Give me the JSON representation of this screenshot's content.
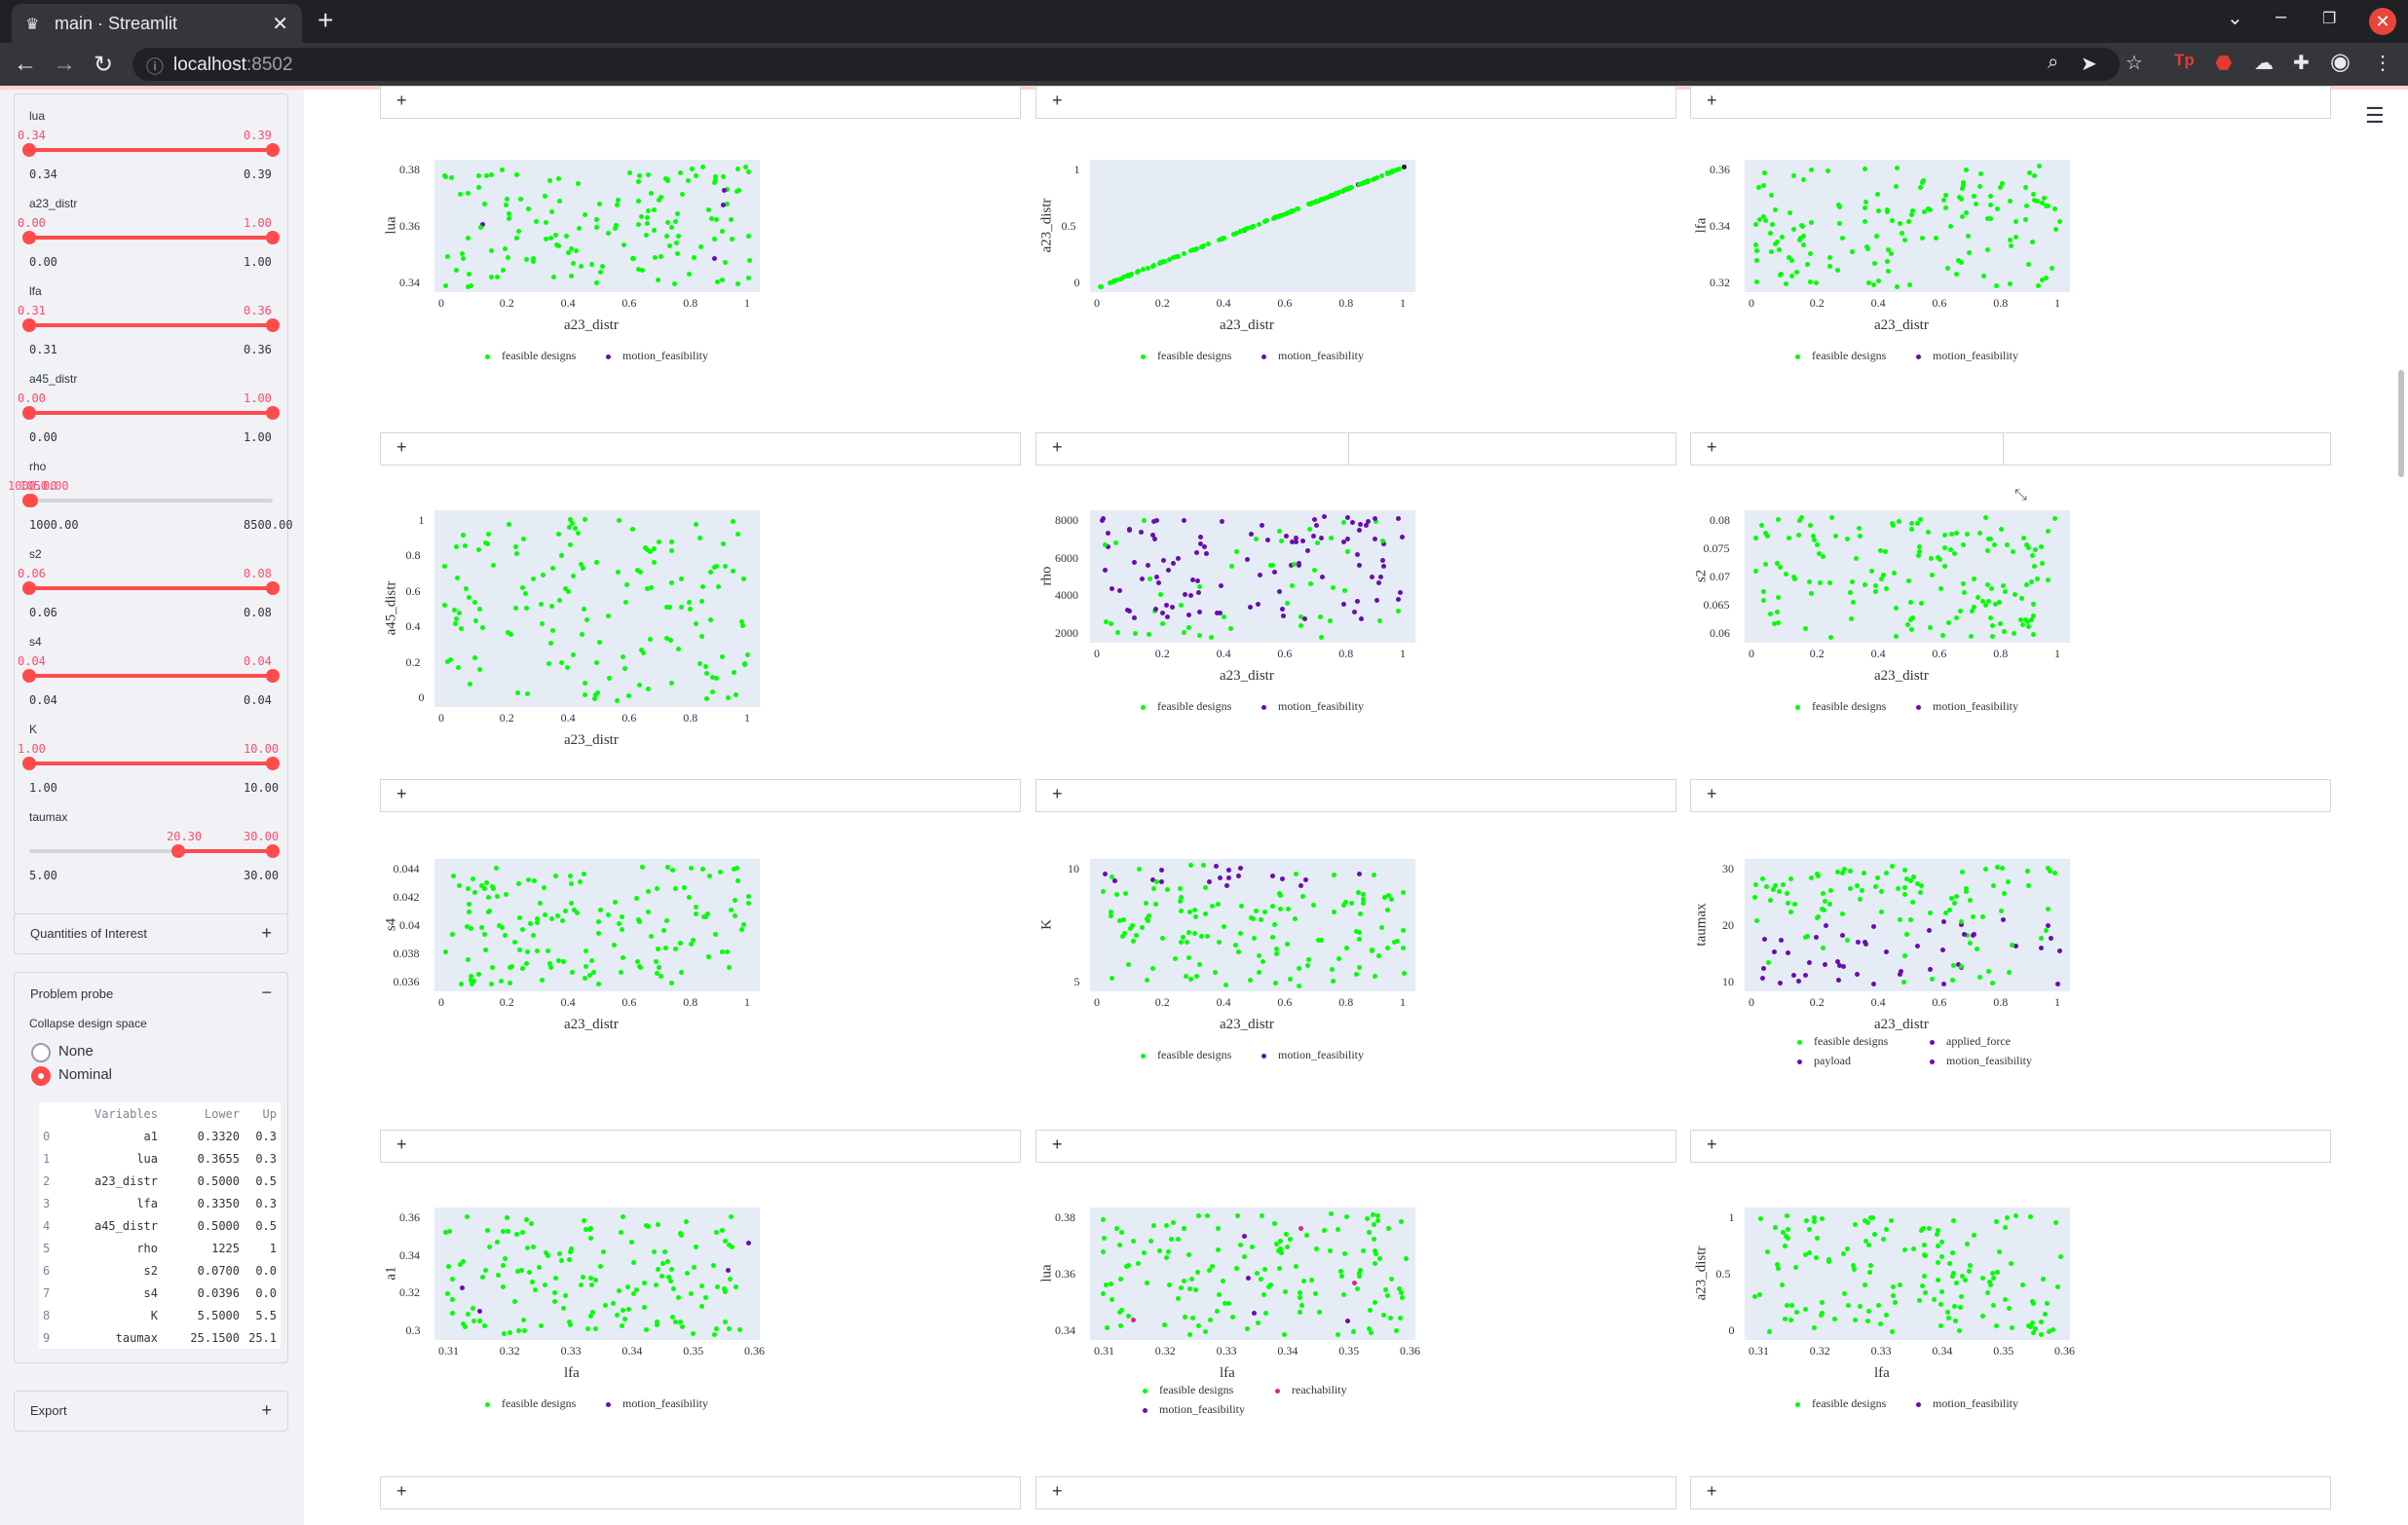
{
  "browser": {
    "tab_title": "main · Streamlit",
    "url_host": "localhost",
    "url_port": ":8502",
    "colors": {
      "frame": "#202124",
      "toolbar": "#35363a",
      "accent": "#ff4b4b"
    }
  },
  "sidebar": {
    "sliders": [
      {
        "label": "lua",
        "lo": "0.34",
        "hi": "0.39",
        "min": "0.34",
        "max": "0.39",
        "f0": 0,
        "f1": 1
      },
      {
        "label": "a23_distr",
        "lo": "0.00",
        "hi": "1.00",
        "min": "0.00",
        "max": "1.00",
        "f0": 0,
        "f1": 1
      },
      {
        "label": "lfa",
        "lo": "0.31",
        "hi": "0.36",
        "min": "0.31",
        "max": "0.36",
        "f0": 0,
        "f1": 1
      },
      {
        "label": "a45_distr",
        "lo": "0.00",
        "hi": "1.00",
        "min": "0.00",
        "max": "1.00",
        "f0": 0,
        "f1": 1
      },
      {
        "label": "rho",
        "lo": "1000.00",
        "hi": "1050.00",
        "min": "1000.00",
        "max": "8500.00",
        "f0": 0,
        "f1": 0.0067
      },
      {
        "label": "s2",
        "lo": "0.06",
        "hi": "0.08",
        "min": "0.06",
        "max": "0.08",
        "f0": 0,
        "f1": 1
      },
      {
        "label": "s4",
        "lo": "0.04",
        "hi": "0.04",
        "min": "0.04",
        "max": "0.04",
        "f0": 0,
        "f1": 1
      },
      {
        "label": "K",
        "lo": "1.00",
        "hi": "10.00",
        "min": "1.00",
        "max": "10.00",
        "f0": 0,
        "f1": 1
      },
      {
        "label": "taumax",
        "lo": "20.30",
        "hi": "30.00",
        "min": "5.00",
        "max": "30.00",
        "f0": 0.612,
        "f1": 1
      }
    ],
    "quantities_title": "Quantities of Interest",
    "probe_title": "Problem probe",
    "collapse_label": "Collapse design space",
    "radio_none": "None",
    "radio_nominal": "Nominal",
    "table": {
      "headers": [
        "Variables",
        "Lower",
        "Up"
      ],
      "rows": [
        [
          "0",
          "a1",
          "0.3320",
          "0.3"
        ],
        [
          "1",
          "lua",
          "0.3655",
          "0.3"
        ],
        [
          "2",
          "a23_distr",
          "0.5000",
          "0.5"
        ],
        [
          "3",
          "lfa",
          "0.3350",
          "0.3"
        ],
        [
          "4",
          "a45_distr",
          "0.5000",
          "0.5"
        ],
        [
          "5",
          "rho",
          "1225",
          "1"
        ],
        [
          "6",
          "s2",
          "0.0700",
          "0.0"
        ],
        [
          "7",
          "s4",
          "0.0396",
          "0.0"
        ],
        [
          "8",
          "K",
          "5.5000",
          "5.5"
        ],
        [
          "9",
          "taumax",
          "25.1500",
          "25.1"
        ]
      ]
    },
    "export_title": "Export"
  },
  "main": {
    "adder_label": "+",
    "colors": {
      "feasible": "#00ff00",
      "motion": "#6a0dad",
      "reachability": "#d6278c",
      "plot_bg": "#e5ecf6"
    },
    "plots": [
      {
        "x": "a23_distr",
        "y": "lua",
        "xt": [
          "0",
          "0.2",
          "0.4",
          "0.6",
          "0.8",
          "1"
        ],
        "yt": [
          "0.34",
          "0.36",
          "0.38"
        ],
        "legend": [
          "feasible designs",
          "motion_feasibility"
        ],
        "lc": [
          "#00ff00",
          "#6a0dad"
        ]
      },
      {
        "x": "a23_distr",
        "y": "a23_distr",
        "xt": [
          "0",
          "0.2",
          "0.4",
          "0.6",
          "0.8",
          "1"
        ],
        "yt": [
          "0",
          "0.5",
          "1"
        ],
        "legend": [
          "feasible designs",
          "motion_feasibility"
        ],
        "lc": [
          "#00ff00",
          "#6a0dad"
        ]
      },
      {
        "x": "a23_distr",
        "y": "lfa",
        "xt": [
          "0",
          "0.2",
          "0.4",
          "0.6",
          "0.8",
          "1"
        ],
        "yt": [
          "0.32",
          "0.34",
          "0.36"
        ],
        "legend": [
          "feasible designs",
          "motion_feasibility"
        ],
        "lc": [
          "#00ff00",
          "#6a0dad"
        ]
      },
      {
        "x": "a23_distr",
        "y": "a45_distr",
        "xt": [
          "0",
          "0.2",
          "0.4",
          "0.6",
          "0.8",
          "1"
        ],
        "yt": [
          "0",
          "0.2",
          "0.4",
          "0.6",
          "0.8",
          "1"
        ],
        "legend": [],
        "lc": []
      },
      {
        "x": "a23_distr",
        "y": "rho",
        "xt": [
          "0",
          "0.2",
          "0.4",
          "0.6",
          "0.8",
          "1"
        ],
        "yt": [
          "2000",
          "4000",
          "6000",
          "8000"
        ],
        "legend": [
          "feasible designs",
          "motion_feasibility"
        ],
        "lc": [
          "#00ff00",
          "#6a0dad"
        ]
      },
      {
        "x": "a23_distr",
        "y": "s2",
        "xt": [
          "0",
          "0.2",
          "0.4",
          "0.6",
          "0.8",
          "1"
        ],
        "yt": [
          "0.06",
          "0.065",
          "0.07",
          "0.075",
          "0.08"
        ],
        "legend": [
          "feasible designs",
          "motion_feasibility"
        ],
        "lc": [
          "#00ff00",
          "#6a0dad"
        ]
      },
      {
        "x": "a23_distr",
        "y": "s4",
        "xt": [
          "0",
          "0.2",
          "0.4",
          "0.6",
          "0.8",
          "1"
        ],
        "yt": [
          "0.036",
          "0.038",
          "0.04",
          "0.042",
          "0.044"
        ],
        "legend": [],
        "lc": []
      },
      {
        "x": "a23_distr",
        "y": "K",
        "xt": [
          "0",
          "0.2",
          "0.4",
          "0.6",
          "0.8",
          "1"
        ],
        "yt": [
          "5",
          "10"
        ],
        "legend": [
          "feasible designs",
          "motion_feasibility"
        ],
        "lc": [
          "#00ff00",
          "#6a0dad"
        ]
      },
      {
        "x": "a23_distr",
        "y": "taumax",
        "xt": [
          "0",
          "0.2",
          "0.4",
          "0.6",
          "0.8",
          "1"
        ],
        "yt": [
          "10",
          "20",
          "30"
        ],
        "legend": [
          "feasible designs",
          "applied_force",
          "payload",
          "motion_feasibility"
        ],
        "lc": [
          "#00ff00",
          "#6a0dad",
          "#6a0dad",
          "#6a0dad"
        ]
      },
      {
        "x": "lfa",
        "y": "a1",
        "xt": [
          "0.31",
          "0.32",
          "0.33",
          "0.34",
          "0.35",
          "0.36"
        ],
        "yt": [
          "0.3",
          "0.32",
          "0.34",
          "0.36"
        ],
        "legend": [
          "feasible designs",
          "motion_feasibility"
        ],
        "lc": [
          "#00ff00",
          "#6a0dad"
        ]
      },
      {
        "x": "lfa",
        "y": "lua",
        "xt": [
          "0.31",
          "0.32",
          "0.33",
          "0.34",
          "0.35",
          "0.36"
        ],
        "yt": [
          "0.34",
          "0.36",
          "0.38"
        ],
        "legend": [
          "feasible designs",
          "reachability",
          "motion_feasibility"
        ],
        "lc": [
          "#00ff00",
          "#d6278c",
          "#6a0dad"
        ]
      },
      {
        "x": "lfa",
        "y": "a23_distr",
        "xt": [
          "0.31",
          "0.32",
          "0.33",
          "0.34",
          "0.35",
          "0.36"
        ],
        "yt": [
          "0",
          "0.5",
          "1"
        ],
        "legend": [
          "feasible designs",
          "motion_feasibility"
        ],
        "lc": [
          "#00ff00",
          "#6a0dad"
        ]
      }
    ]
  }
}
